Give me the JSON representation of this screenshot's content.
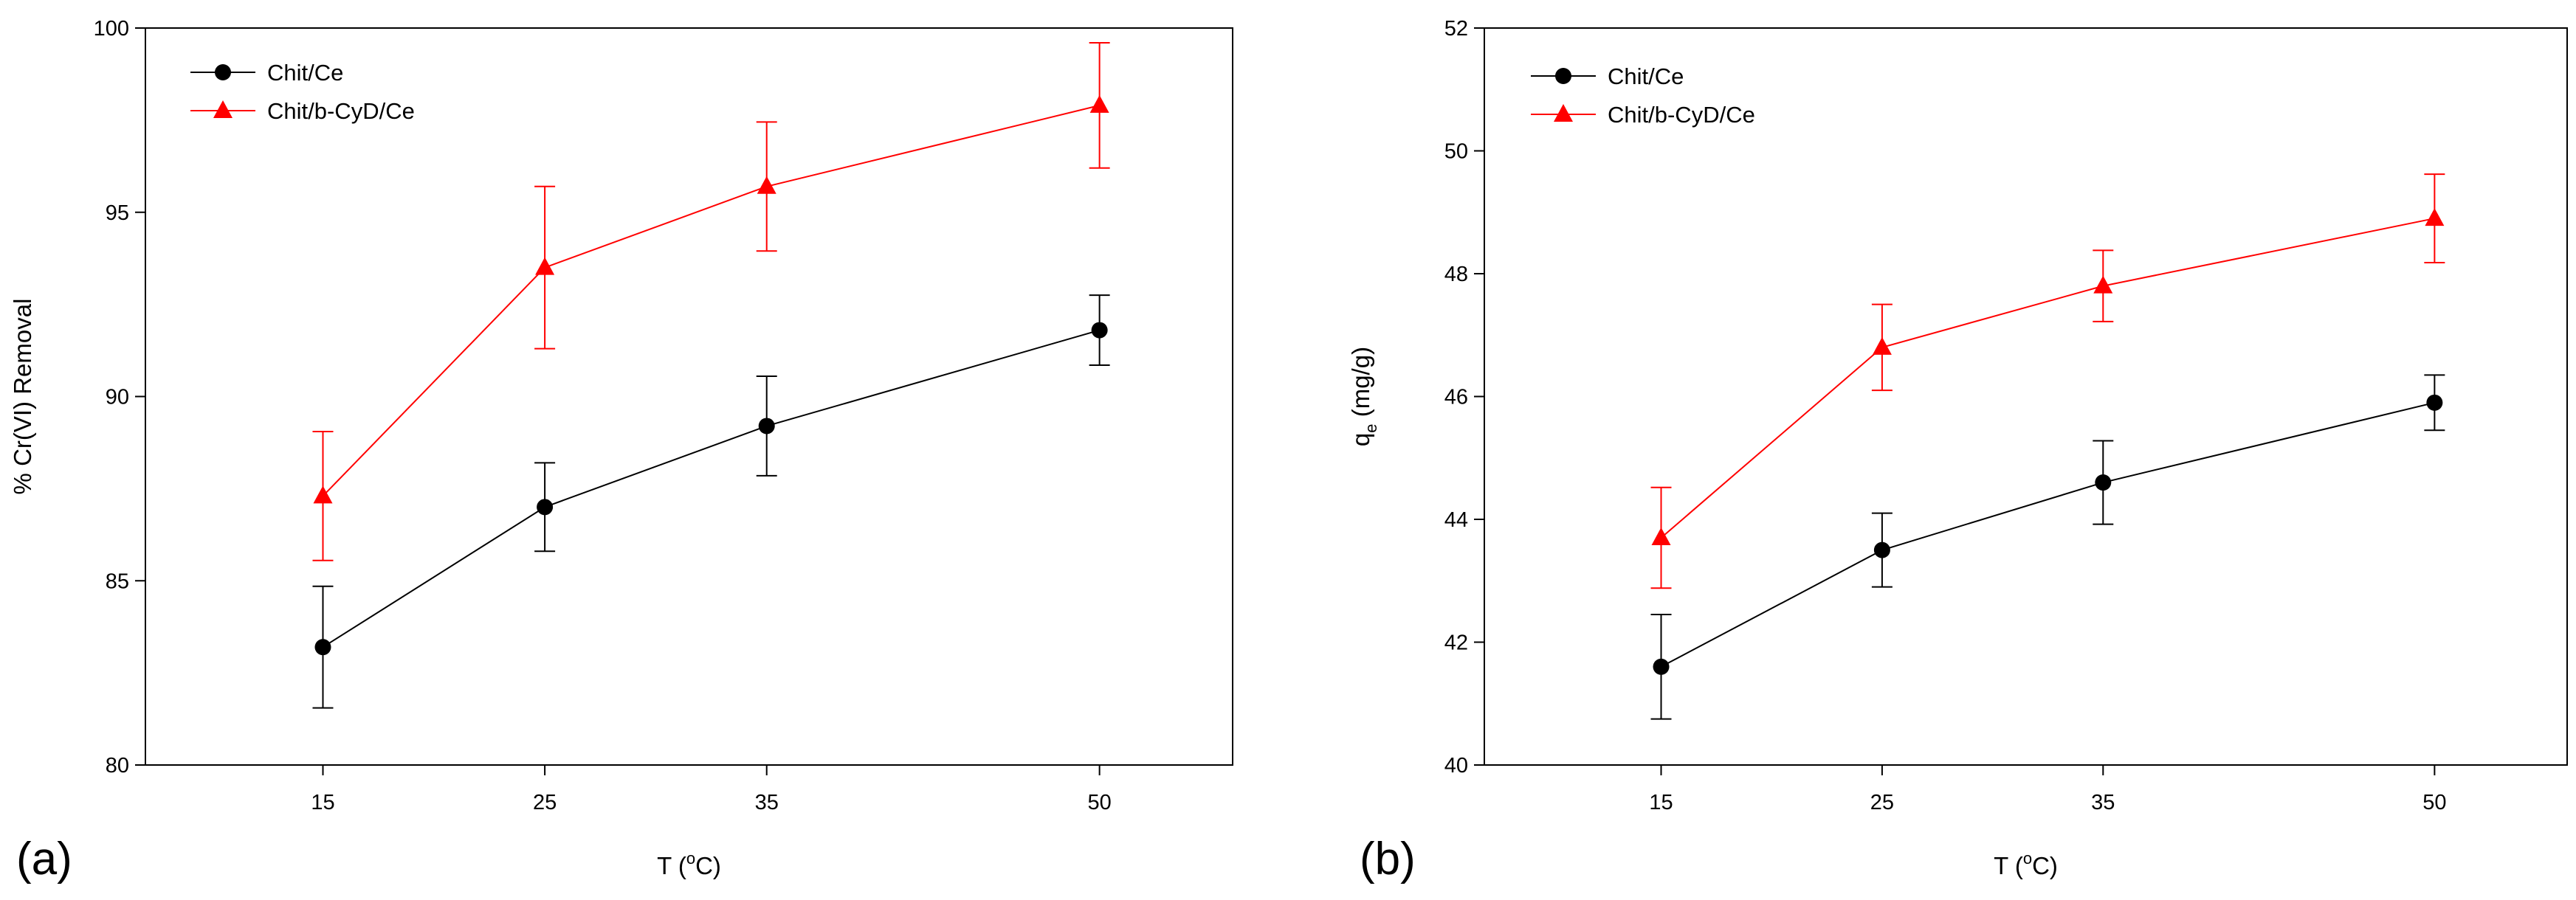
{
  "chart_data": [
    {
      "type": "line",
      "panel_label": "(a)",
      "x": [
        15,
        25,
        35,
        50
      ],
      "xlabel": {
        "prefix": "T (",
        "sup": "o",
        "suffix": "C)"
      },
      "ylabel": "% Cr(VI) Removal",
      "xlim": [
        7,
        56
      ],
      "ylim": [
        80,
        100
      ],
      "yticks": [
        80,
        85,
        90,
        95,
        100
      ],
      "legend_position": "top-left",
      "series": [
        {
          "name": "Chit/Ce",
          "color": "#000000",
          "marker": "circle",
          "values": [
            83.2,
            87.0,
            89.2,
            91.8
          ],
          "errors": [
            1.65,
            1.2,
            1.35,
            0.95
          ]
        },
        {
          "name": "Chit/b-CyD/Ce",
          "color": "#ff0000",
          "marker": "triangle",
          "values": [
            87.3,
            93.5,
            95.7,
            97.9
          ],
          "errors": [
            1.75,
            2.2,
            1.75,
            1.7
          ]
        }
      ]
    },
    {
      "type": "line",
      "panel_label": "(b)",
      "x": [
        15,
        25,
        35,
        50
      ],
      "xlabel": {
        "prefix": "T (",
        "sup": "o",
        "suffix": "C)"
      },
      "ylabel": {
        "main": "q",
        "sub": "e",
        "suffix": " (mg/g)"
      },
      "xlim": [
        7,
        56
      ],
      "ylim": [
        40,
        52
      ],
      "yticks": [
        40,
        42,
        44,
        46,
        48,
        50,
        52
      ],
      "legend_position": "top-left",
      "series": [
        {
          "name": "Chit/Ce",
          "color": "#000000",
          "marker": "circle",
          "values": [
            41.6,
            43.5,
            44.6,
            45.9
          ],
          "errors": [
            0.85,
            0.6,
            0.68,
            0.45
          ]
        },
        {
          "name": "Chit/b-CyD/Ce",
          "color": "#ff0000",
          "marker": "triangle",
          "values": [
            43.7,
            46.8,
            47.8,
            48.9
          ],
          "errors": [
            0.82,
            0.7,
            0.58,
            0.72
          ]
        }
      ]
    }
  ]
}
